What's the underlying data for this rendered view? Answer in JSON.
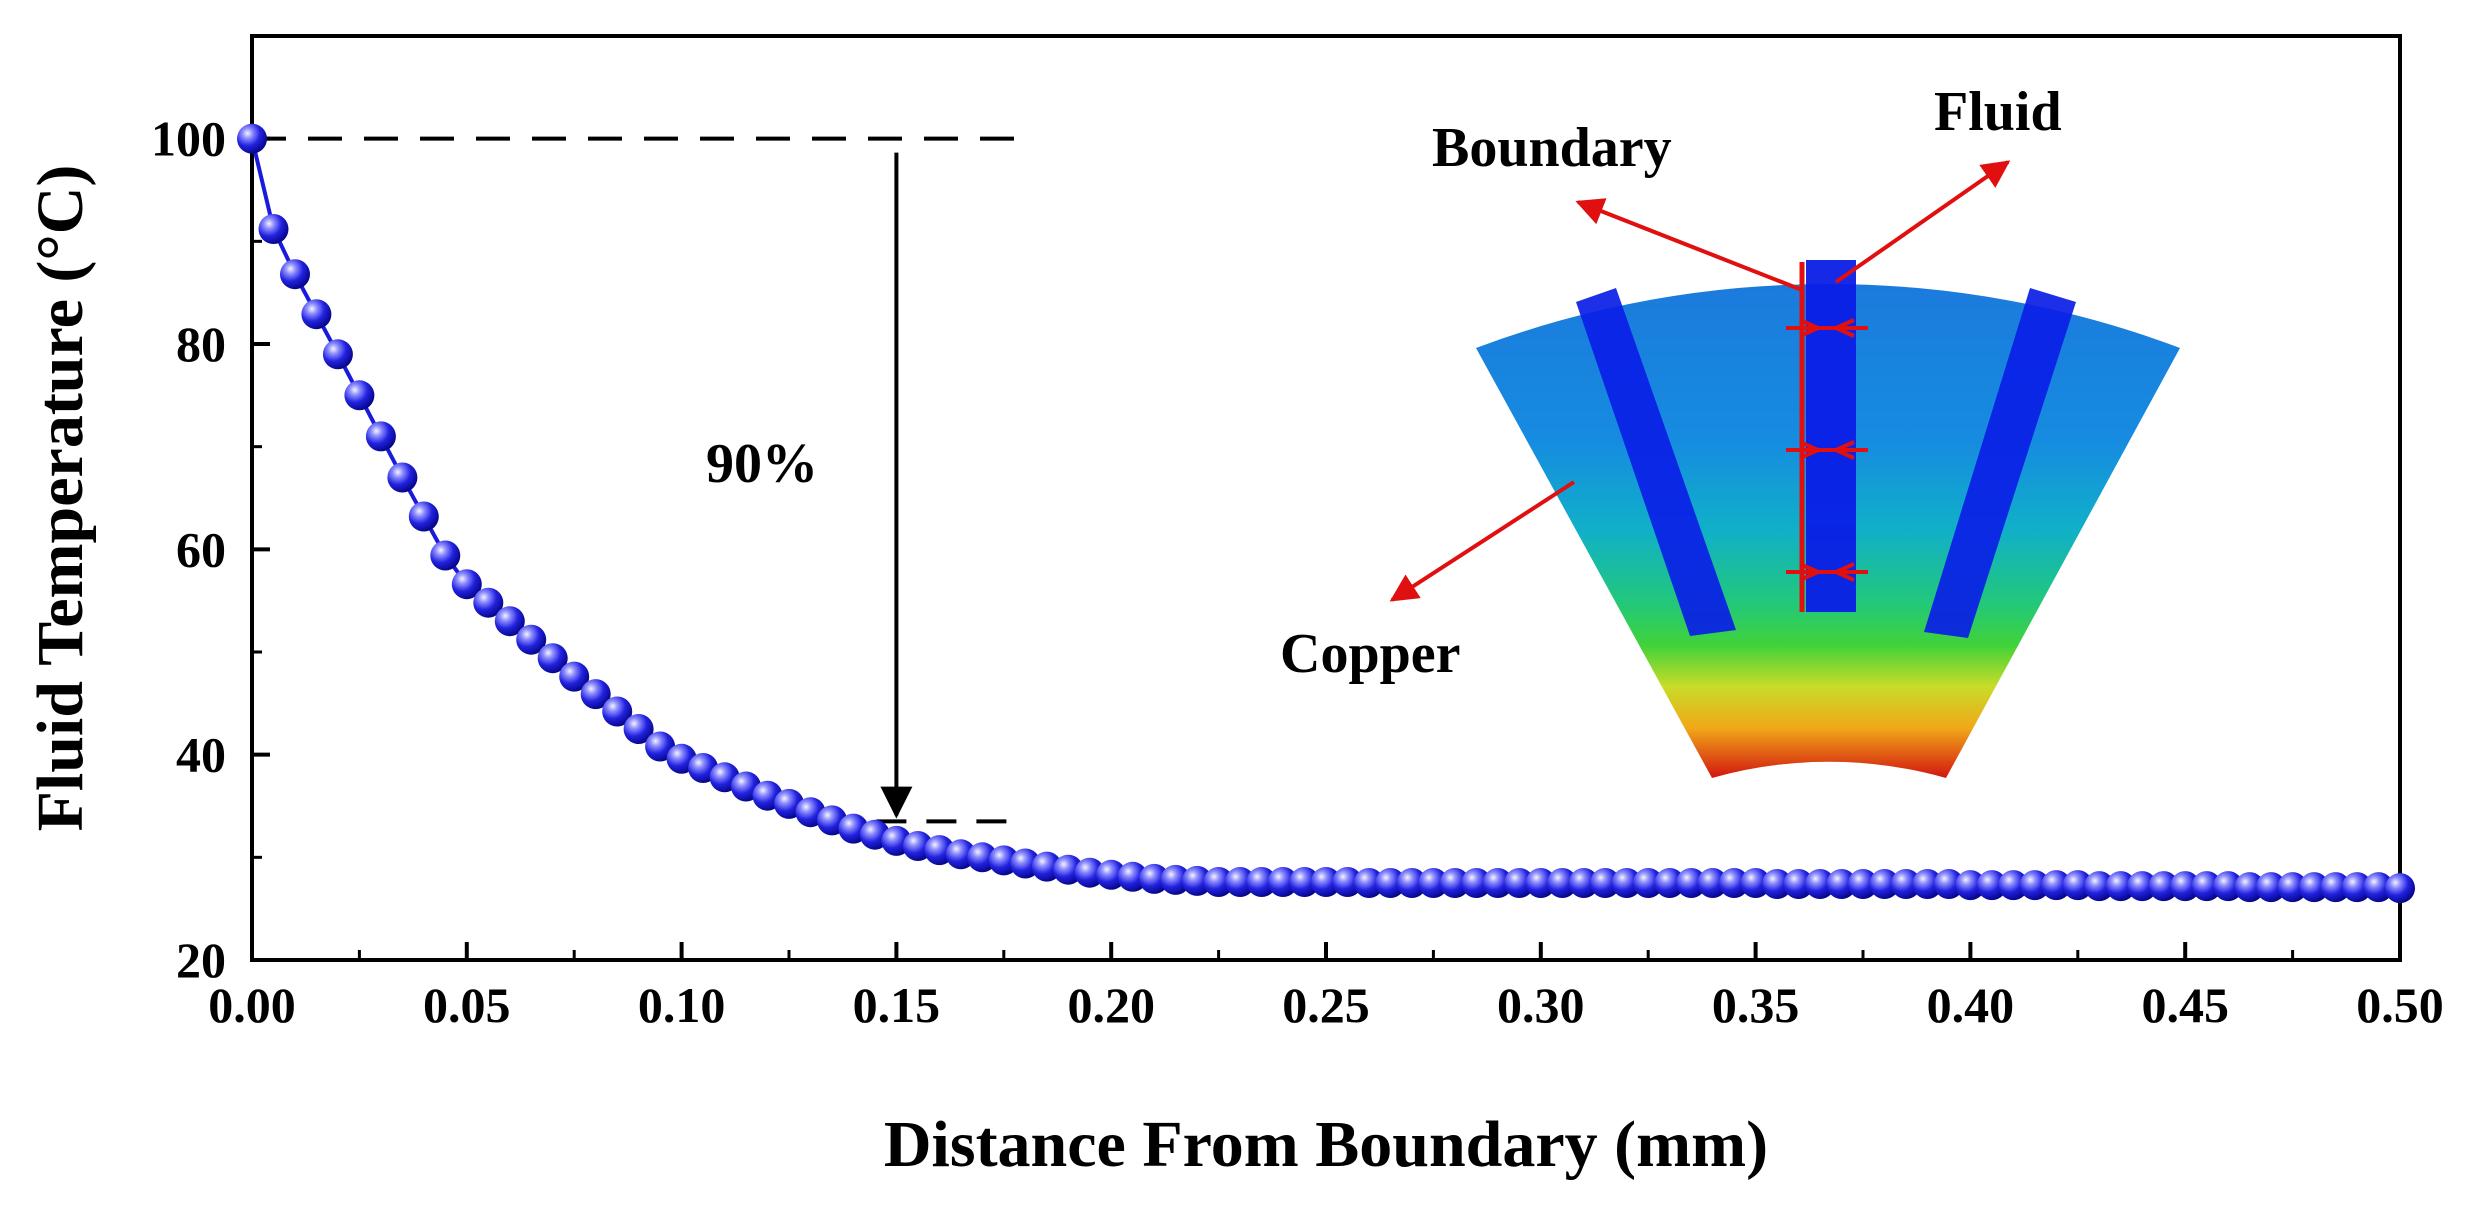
{
  "chart_data": {
    "type": "line",
    "xlabel": "Distance From Boundary (mm)",
    "ylabel": "Fluid Temperature (°C)",
    "xlim": [
      0,
      0.5
    ],
    "ylim": [
      20,
      110
    ],
    "xticks": [
      "0.00",
      "0.05",
      "0.10",
      "0.15",
      "0.20",
      "0.25",
      "0.30",
      "0.35",
      "0.40",
      "0.45",
      "0.50"
    ],
    "yticks": [
      "20",
      "40",
      "60",
      "80",
      "100"
    ],
    "grid": false,
    "series": [
      {
        "name": "Fluid Temperature",
        "color": "#1a1adc",
        "marker": "sphere",
        "x": [
          0.0,
          0.005,
          0.01,
          0.015,
          0.02,
          0.025,
          0.03,
          0.035,
          0.04,
          0.045,
          0.05,
          0.055,
          0.06,
          0.065,
          0.07,
          0.075,
          0.08,
          0.085,
          0.09,
          0.095,
          0.1,
          0.105,
          0.11,
          0.115,
          0.12,
          0.125,
          0.13,
          0.135,
          0.14,
          0.145,
          0.15,
          0.155,
          0.16,
          0.165,
          0.17,
          0.175,
          0.18,
          0.185,
          0.19,
          0.195,
          0.2,
          0.205,
          0.21,
          0.215,
          0.22,
          0.225,
          0.23,
          0.235,
          0.24,
          0.245,
          0.25,
          0.255,
          0.26,
          0.265,
          0.27,
          0.275,
          0.28,
          0.285,
          0.29,
          0.295,
          0.3,
          0.305,
          0.31,
          0.315,
          0.32,
          0.325,
          0.33,
          0.335,
          0.34,
          0.345,
          0.35,
          0.355,
          0.36,
          0.365,
          0.37,
          0.375,
          0.38,
          0.385,
          0.39,
          0.395,
          0.4,
          0.405,
          0.41,
          0.415,
          0.42,
          0.425,
          0.43,
          0.435,
          0.44,
          0.445,
          0.45,
          0.455,
          0.46,
          0.465,
          0.47,
          0.475,
          0.48,
          0.485,
          0.49,
          0.495,
          0.5
        ],
        "y": [
          100,
          91.2,
          86.8,
          82.9,
          79.0,
          75.0,
          71.0,
          67.0,
          63.2,
          59.4,
          56.6,
          54.8,
          53.0,
          51.2,
          49.4,
          47.6,
          45.9,
          44.2,
          42.5,
          40.8,
          39.6,
          38.7,
          37.8,
          36.9,
          36.0,
          35.2,
          34.4,
          33.6,
          32.8,
          32.2,
          31.6,
          31.1,
          30.7,
          30.3,
          30.0,
          29.7,
          29.4,
          29.1,
          28.8,
          28.5,
          28.3,
          28.1,
          27.9,
          27.8,
          27.7,
          27.6,
          27.6,
          27.6,
          27.6,
          27.6,
          27.6,
          27.6,
          27.5,
          27.5,
          27.5,
          27.5,
          27.5,
          27.5,
          27.5,
          27.5,
          27.5,
          27.5,
          27.5,
          27.5,
          27.5,
          27.5,
          27.5,
          27.5,
          27.5,
          27.5,
          27.5,
          27.4,
          27.4,
          27.4,
          27.4,
          27.4,
          27.4,
          27.4,
          27.4,
          27.4,
          27.3,
          27.3,
          27.3,
          27.3,
          27.3,
          27.3,
          27.2,
          27.2,
          27.2,
          27.2,
          27.2,
          27.2,
          27.2,
          27.1,
          27.1,
          27.1,
          27.1,
          27.1,
          27.1,
          27.1,
          27.0
        ]
      }
    ],
    "annotations": {
      "percent_label": "90%",
      "reference_start": {
        "x": 0.0,
        "y": 100
      },
      "reference_end": {
        "x": 0.15,
        "y": 33.5
      }
    },
    "inset": {
      "labels": {
        "boundary": "Boundary",
        "fluid": "Fluid",
        "copper": "Copper"
      },
      "colors": {
        "copper_top": "#1c82e0",
        "fluid": "#0a1ee6",
        "hot": "#d41414",
        "warm": "#f0c814",
        "mid": "#28c85a"
      }
    }
  }
}
